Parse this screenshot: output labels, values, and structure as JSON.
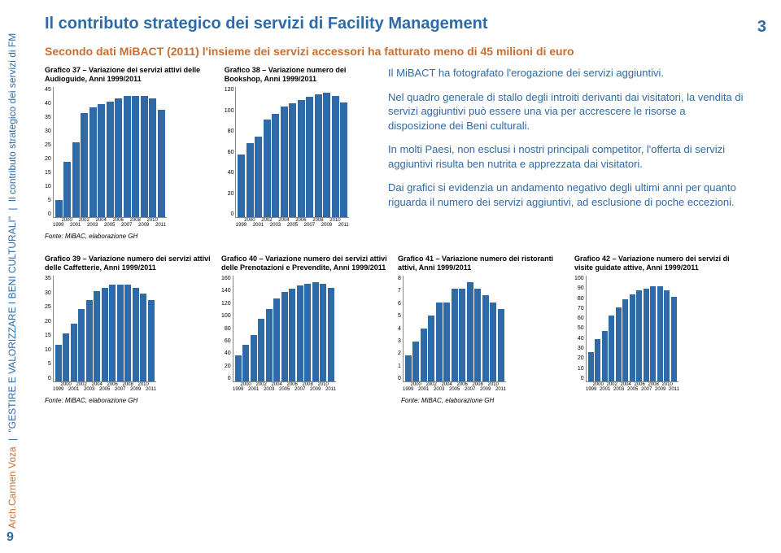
{
  "page_left": "9",
  "page_right": "3",
  "sidebar": {
    "author": "Arch.Carmen Voza",
    "book": "\"GESTIRE E VALORIZZARE I BENI CULTURALI\"",
    "section": "Il contributo strategico dei servizi di FM"
  },
  "title": "Il contributo strategico dei servizi di Facility Management",
  "subtitle": "Secondo dati MiBACT (2011) l'insieme dei servizi accessori ha fatturato meno di 45 milioni di euro",
  "paragraphs": {
    "p1": "Il MiBACT ha fotografato l'erogazione dei servizi aggiuntivi.",
    "p2": "Nel quadro generale di stallo degli introiti derivanti dai visitatori, la vendita di servizi aggiuntivi può essere una via per accrescere le risorse a disposizione dei Beni culturali.",
    "p3": "In molti Paesi, non esclusi i nostri principali competitor, l'offerta di servizi aggiuntivi risulta ben nutrita e apprezzata dai visitatori.",
    "p4": "Dai grafici si evidenzia un andamento negativo degli ultimi anni per quanto riguarda il numero dei servizi aggiuntivi, ad esclusione di poche eccezioni."
  },
  "source": "Fonte: MiBAC, elaborazione GH",
  "bar_color": "#2f6aa8",
  "years_top": [
    "1999",
    "2000",
    "2001",
    "2002",
    "2003",
    "2004",
    "2005",
    "2006",
    "2007",
    "2008",
    "2009",
    "2010",
    "2011"
  ],
  "years_bot": [
    "1999",
    "2000",
    "2001",
    "2002",
    "2003",
    "2004",
    "2005",
    "2006",
    "2007",
    "2008",
    "2009",
    "2010",
    "2011"
  ],
  "charts": {
    "c37": {
      "title": "Grafico 37 – Variazione dei servizi attivi delle Audioguide, Anni 1999/2011",
      "ymax": 45,
      "ystep": 5,
      "height": 160,
      "values": [
        6,
        19,
        26,
        36,
        38,
        39,
        40,
        41,
        42,
        42,
        42,
        41,
        37
      ]
    },
    "c38": {
      "title": "Grafico 38 – Variazione numero dei Bookshop, Anni 1999/2011",
      "ymax": 120,
      "ystep": 20,
      "height": 160,
      "values": [
        58,
        68,
        74,
        90,
        95,
        102,
        105,
        108,
        111,
        113,
        115,
        112,
        106
      ]
    },
    "c39": {
      "title": "Grafico 39 – Variazione numero dei servizi attivi delle Caffetterie, Anni 1999/2011",
      "ymax": 35,
      "ystep": 5,
      "height": 130,
      "values": [
        12,
        16,
        19,
        24,
        27,
        30,
        31,
        32,
        32,
        32,
        31,
        29,
        27
      ]
    },
    "c40": {
      "title": "Grafico 40 – Variazione numero dei servizi attivi delle Prenotazioni e Prevendite, Anni 1999/2011",
      "ymax": 160,
      "ystep": 20,
      "height": 130,
      "values": [
        40,
        55,
        70,
        95,
        110,
        125,
        135,
        140,
        145,
        148,
        150,
        148,
        142
      ]
    },
    "c41": {
      "title": "Grafico 41 – Variazione numero dei ristoranti attivi, Anni 1999/2011",
      "ymax": 8,
      "ystep": 1,
      "height": 130,
      "values": [
        2,
        3,
        4,
        5,
        6,
        6,
        7,
        7,
        7.5,
        7,
        6.5,
        6,
        5.5
      ]
    },
    "c42": {
      "title": "Grafico 42 – Variazione numero dei servizi di visite guidate attive, Anni 1999/2011",
      "ymax": 100,
      "ystep": 10,
      "height": 130,
      "values": [
        28,
        40,
        48,
        62,
        70,
        78,
        82,
        86,
        88,
        90,
        90,
        86,
        80
      ]
    }
  }
}
